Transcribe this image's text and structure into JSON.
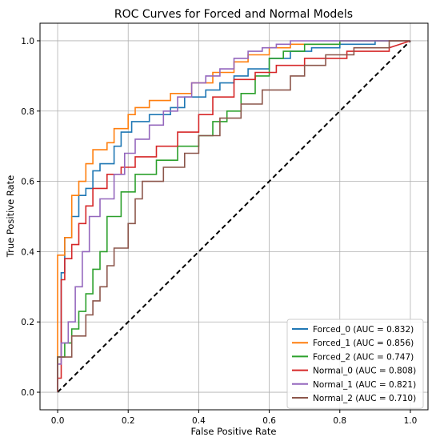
{
  "chart_data": {
    "type": "line",
    "title": "ROC Curves for Forced and Normal Models",
    "xlabel": "False Positive Rate",
    "ylabel": "True Positive Rate",
    "xlim": [
      -0.05,
      1.05
    ],
    "ylim": [
      -0.05,
      1.05
    ],
    "xticks": [
      "0.0",
      "0.2",
      "0.4",
      "0.6",
      "0.8",
      "1.0"
    ],
    "yticks": [
      "0.0",
      "0.2",
      "0.4",
      "0.6",
      "0.8",
      "1.0"
    ],
    "grid": true,
    "legend_position": "lower right",
    "diagonal": {
      "x": [
        0,
        1
      ],
      "y": [
        0,
        1
      ],
      "style": "dashed",
      "color": "#000000"
    },
    "series": [
      {
        "name": "Forced_0 (AUC = 0.832)",
        "color": "#1f77b4",
        "x": [
          0,
          0,
          0.01,
          0.01,
          0.02,
          0.02,
          0.04,
          0.04,
          0.06,
          0.06,
          0.08,
          0.08,
          0.1,
          0.1,
          0.12,
          0.12,
          0.16,
          0.16,
          0.18,
          0.18,
          0.21,
          0.21,
          0.26,
          0.26,
          0.32,
          0.32,
          0.36,
          0.36,
          0.42,
          0.42,
          0.46,
          0.46,
          0.5,
          0.5,
          0.54,
          0.54,
          0.6,
          0.6,
          0.66,
          0.66,
          0.72,
          0.72,
          0.8,
          0.8,
          0.9,
          0.9,
          1.0
        ],
        "y": [
          0,
          0.1,
          0.1,
          0.34,
          0.34,
          0.44,
          0.44,
          0.5,
          0.5,
          0.56,
          0.56,
          0.58,
          0.58,
          0.63,
          0.63,
          0.65,
          0.65,
          0.7,
          0.7,
          0.74,
          0.74,
          0.77,
          0.77,
          0.79,
          0.79,
          0.81,
          0.81,
          0.84,
          0.84,
          0.86,
          0.86,
          0.88,
          0.88,
          0.9,
          0.9,
          0.92,
          0.92,
          0.95,
          0.95,
          0.97,
          0.97,
          0.98,
          0.98,
          0.99,
          0.99,
          1.0,
          1.0
        ]
      },
      {
        "name": "Forced_1 (AUC = 0.856)",
        "color": "#ff7f0e",
        "x": [
          0,
          0,
          0.02,
          0.02,
          0.04,
          0.04,
          0.06,
          0.06,
          0.08,
          0.08,
          0.1,
          0.1,
          0.14,
          0.14,
          0.16,
          0.16,
          0.2,
          0.2,
          0.22,
          0.22,
          0.26,
          0.26,
          0.32,
          0.32,
          0.38,
          0.38,
          0.44,
          0.44,
          0.5,
          0.5,
          0.54,
          0.54,
          0.6,
          0.6,
          0.66,
          0.66,
          0.72,
          0.72,
          0.8,
          0.8,
          0.9,
          0.9,
          1.0
        ],
        "y": [
          0,
          0.39,
          0.39,
          0.44,
          0.44,
          0.56,
          0.56,
          0.6,
          0.6,
          0.65,
          0.65,
          0.69,
          0.69,
          0.71,
          0.71,
          0.75,
          0.75,
          0.79,
          0.79,
          0.81,
          0.81,
          0.83,
          0.83,
          0.85,
          0.85,
          0.88,
          0.88,
          0.91,
          0.91,
          0.94,
          0.94,
          0.96,
          0.96,
          0.98,
          0.98,
          0.99,
          0.99,
          0.99,
          0.99,
          1.0,
          1.0,
          1.0,
          1.0
        ]
      },
      {
        "name": "Forced_2 (AUC = 0.747)",
        "color": "#2ca02c",
        "x": [
          0,
          0,
          0.02,
          0.02,
          0.04,
          0.04,
          0.06,
          0.06,
          0.08,
          0.08,
          0.1,
          0.1,
          0.12,
          0.12,
          0.14,
          0.14,
          0.18,
          0.18,
          0.22,
          0.22,
          0.28,
          0.28,
          0.34,
          0.34,
          0.4,
          0.4,
          0.44,
          0.44,
          0.48,
          0.48,
          0.52,
          0.52,
          0.56,
          0.56,
          0.6,
          0.6,
          0.64,
          0.64,
          0.7,
          0.7,
          0.8,
          0.8,
          0.92,
          0.92,
          1.0
        ],
        "y": [
          0,
          0.1,
          0.1,
          0.14,
          0.14,
          0.18,
          0.18,
          0.23,
          0.23,
          0.28,
          0.28,
          0.35,
          0.35,
          0.4,
          0.4,
          0.5,
          0.5,
          0.57,
          0.57,
          0.62,
          0.62,
          0.66,
          0.66,
          0.7,
          0.7,
          0.73,
          0.73,
          0.77,
          0.77,
          0.8,
          0.8,
          0.85,
          0.85,
          0.9,
          0.9,
          0.95,
          0.95,
          0.97,
          0.97,
          0.99,
          0.99,
          1.0,
          1.0,
          1.0,
          1.0
        ]
      },
      {
        "name": "Normal_0 (AUC = 0.808)",
        "color": "#d62728",
        "x": [
          0,
          0,
          0.01,
          0.01,
          0.02,
          0.02,
          0.04,
          0.04,
          0.06,
          0.06,
          0.08,
          0.08,
          0.1,
          0.1,
          0.14,
          0.14,
          0.18,
          0.18,
          0.22,
          0.22,
          0.28,
          0.28,
          0.34,
          0.34,
          0.4,
          0.4,
          0.44,
          0.44,
          0.5,
          0.5,
          0.56,
          0.56,
          0.62,
          0.62,
          0.7,
          0.7,
          0.82,
          0.82,
          0.94,
          0.94,
          1.0
        ],
        "y": [
          0,
          0.04,
          0.04,
          0.32,
          0.32,
          0.38,
          0.38,
          0.42,
          0.42,
          0.48,
          0.48,
          0.53,
          0.53,
          0.58,
          0.58,
          0.62,
          0.62,
          0.64,
          0.64,
          0.67,
          0.67,
          0.7,
          0.7,
          0.74,
          0.74,
          0.79,
          0.79,
          0.84,
          0.84,
          0.89,
          0.89,
          0.91,
          0.91,
          0.93,
          0.93,
          0.95,
          0.95,
          0.97,
          0.97,
          0.98,
          1.0
        ]
      },
      {
        "name": "Normal_1 (AUC = 0.821)",
        "color": "#9467bd",
        "x": [
          0,
          0,
          0.01,
          0.01,
          0.03,
          0.03,
          0.05,
          0.05,
          0.07,
          0.07,
          0.09,
          0.09,
          0.12,
          0.12,
          0.16,
          0.16,
          0.19,
          0.19,
          0.22,
          0.22,
          0.26,
          0.26,
          0.3,
          0.3,
          0.34,
          0.34,
          0.38,
          0.38,
          0.42,
          0.42,
          0.46,
          0.46,
          0.5,
          0.5,
          0.54,
          0.54,
          0.58,
          0.58,
          0.62,
          0.62,
          0.66,
          0.66,
          0.72,
          0.72,
          1.0
        ],
        "y": [
          0,
          0.08,
          0.08,
          0.14,
          0.14,
          0.2,
          0.2,
          0.3,
          0.3,
          0.4,
          0.4,
          0.5,
          0.5,
          0.55,
          0.55,
          0.62,
          0.62,
          0.68,
          0.68,
          0.72,
          0.72,
          0.76,
          0.76,
          0.8,
          0.8,
          0.84,
          0.84,
          0.88,
          0.88,
          0.9,
          0.9,
          0.92,
          0.92,
          0.95,
          0.95,
          0.97,
          0.97,
          0.98,
          0.98,
          0.99,
          0.99,
          1.0,
          1.0,
          1.0,
          1.0
        ]
      },
      {
        "name": "Normal_2 (AUC = 0.710)",
        "color": "#8c564b",
        "x": [
          0,
          0,
          0.04,
          0.04,
          0.08,
          0.08,
          0.1,
          0.1,
          0.12,
          0.12,
          0.14,
          0.14,
          0.16,
          0.16,
          0.2,
          0.2,
          0.22,
          0.22,
          0.24,
          0.24,
          0.3,
          0.3,
          0.36,
          0.36,
          0.4,
          0.4,
          0.46,
          0.46,
          0.52,
          0.52,
          0.58,
          0.58,
          0.66,
          0.66,
          0.7,
          0.7,
          0.76,
          0.76,
          0.84,
          0.84,
          0.94,
          0.94,
          1.0
        ],
        "y": [
          0,
          0.1,
          0.1,
          0.16,
          0.16,
          0.22,
          0.22,
          0.26,
          0.26,
          0.3,
          0.3,
          0.36,
          0.36,
          0.41,
          0.41,
          0.48,
          0.48,
          0.55,
          0.55,
          0.6,
          0.6,
          0.64,
          0.64,
          0.68,
          0.68,
          0.73,
          0.73,
          0.78,
          0.78,
          0.82,
          0.82,
          0.86,
          0.86,
          0.9,
          0.9,
          0.93,
          0.93,
          0.96,
          0.96,
          0.98,
          0.98,
          1.0,
          1.0
        ]
      }
    ]
  }
}
